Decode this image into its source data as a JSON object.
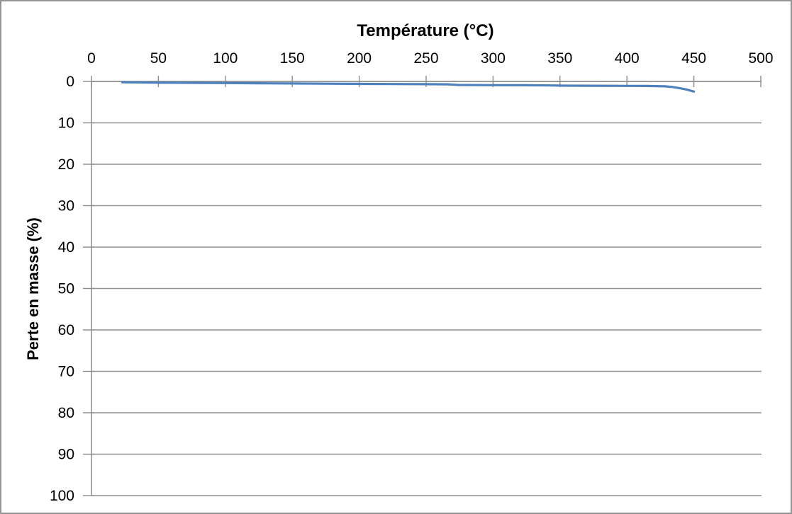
{
  "chart": {
    "title": "Température (°C)",
    "y_axis_title": "Perte en masse (%)"
  },
  "chart_data": {
    "type": "line",
    "title": "Température (°C)",
    "xlabel": "Température (°C)",
    "ylabel": "Perte en masse (%)",
    "x_axis_position": "top",
    "y_axis_inverted": true,
    "xlim": [
      0,
      500
    ],
    "ylim": [
      0,
      100
    ],
    "x_ticks": [
      0,
      50,
      100,
      150,
      200,
      250,
      300,
      350,
      400,
      450,
      500
    ],
    "y_ticks": [
      0,
      10,
      20,
      30,
      40,
      50,
      60,
      70,
      80,
      90,
      100
    ],
    "grid": "horizontal-major",
    "legend": false,
    "colors": {
      "line": "#4F81BD",
      "axis": "#8C8C8C",
      "grid": "#919191",
      "tick_label": "#000000",
      "frame": "#949494"
    },
    "series": [
      {
        "name": "Perte en masse",
        "color": "#4F81BD",
        "points": [
          [
            23,
            0.2
          ],
          [
            50,
            0.3
          ],
          [
            75,
            0.35
          ],
          [
            100,
            0.4
          ],
          [
            125,
            0.45
          ],
          [
            150,
            0.5
          ],
          [
            175,
            0.55
          ],
          [
            200,
            0.6
          ],
          [
            225,
            0.63
          ],
          [
            250,
            0.66
          ],
          [
            266,
            0.7
          ],
          [
            274,
            0.85
          ],
          [
            300,
            0.9
          ],
          [
            325,
            0.93
          ],
          [
            345,
            0.97
          ],
          [
            353,
            1.03
          ],
          [
            375,
            1.05
          ],
          [
            400,
            1.08
          ],
          [
            415,
            1.1
          ],
          [
            428,
            1.18
          ],
          [
            434,
            1.35
          ],
          [
            440,
            1.65
          ],
          [
            445,
            2.0
          ],
          [
            450,
            2.45
          ]
        ]
      }
    ]
  }
}
